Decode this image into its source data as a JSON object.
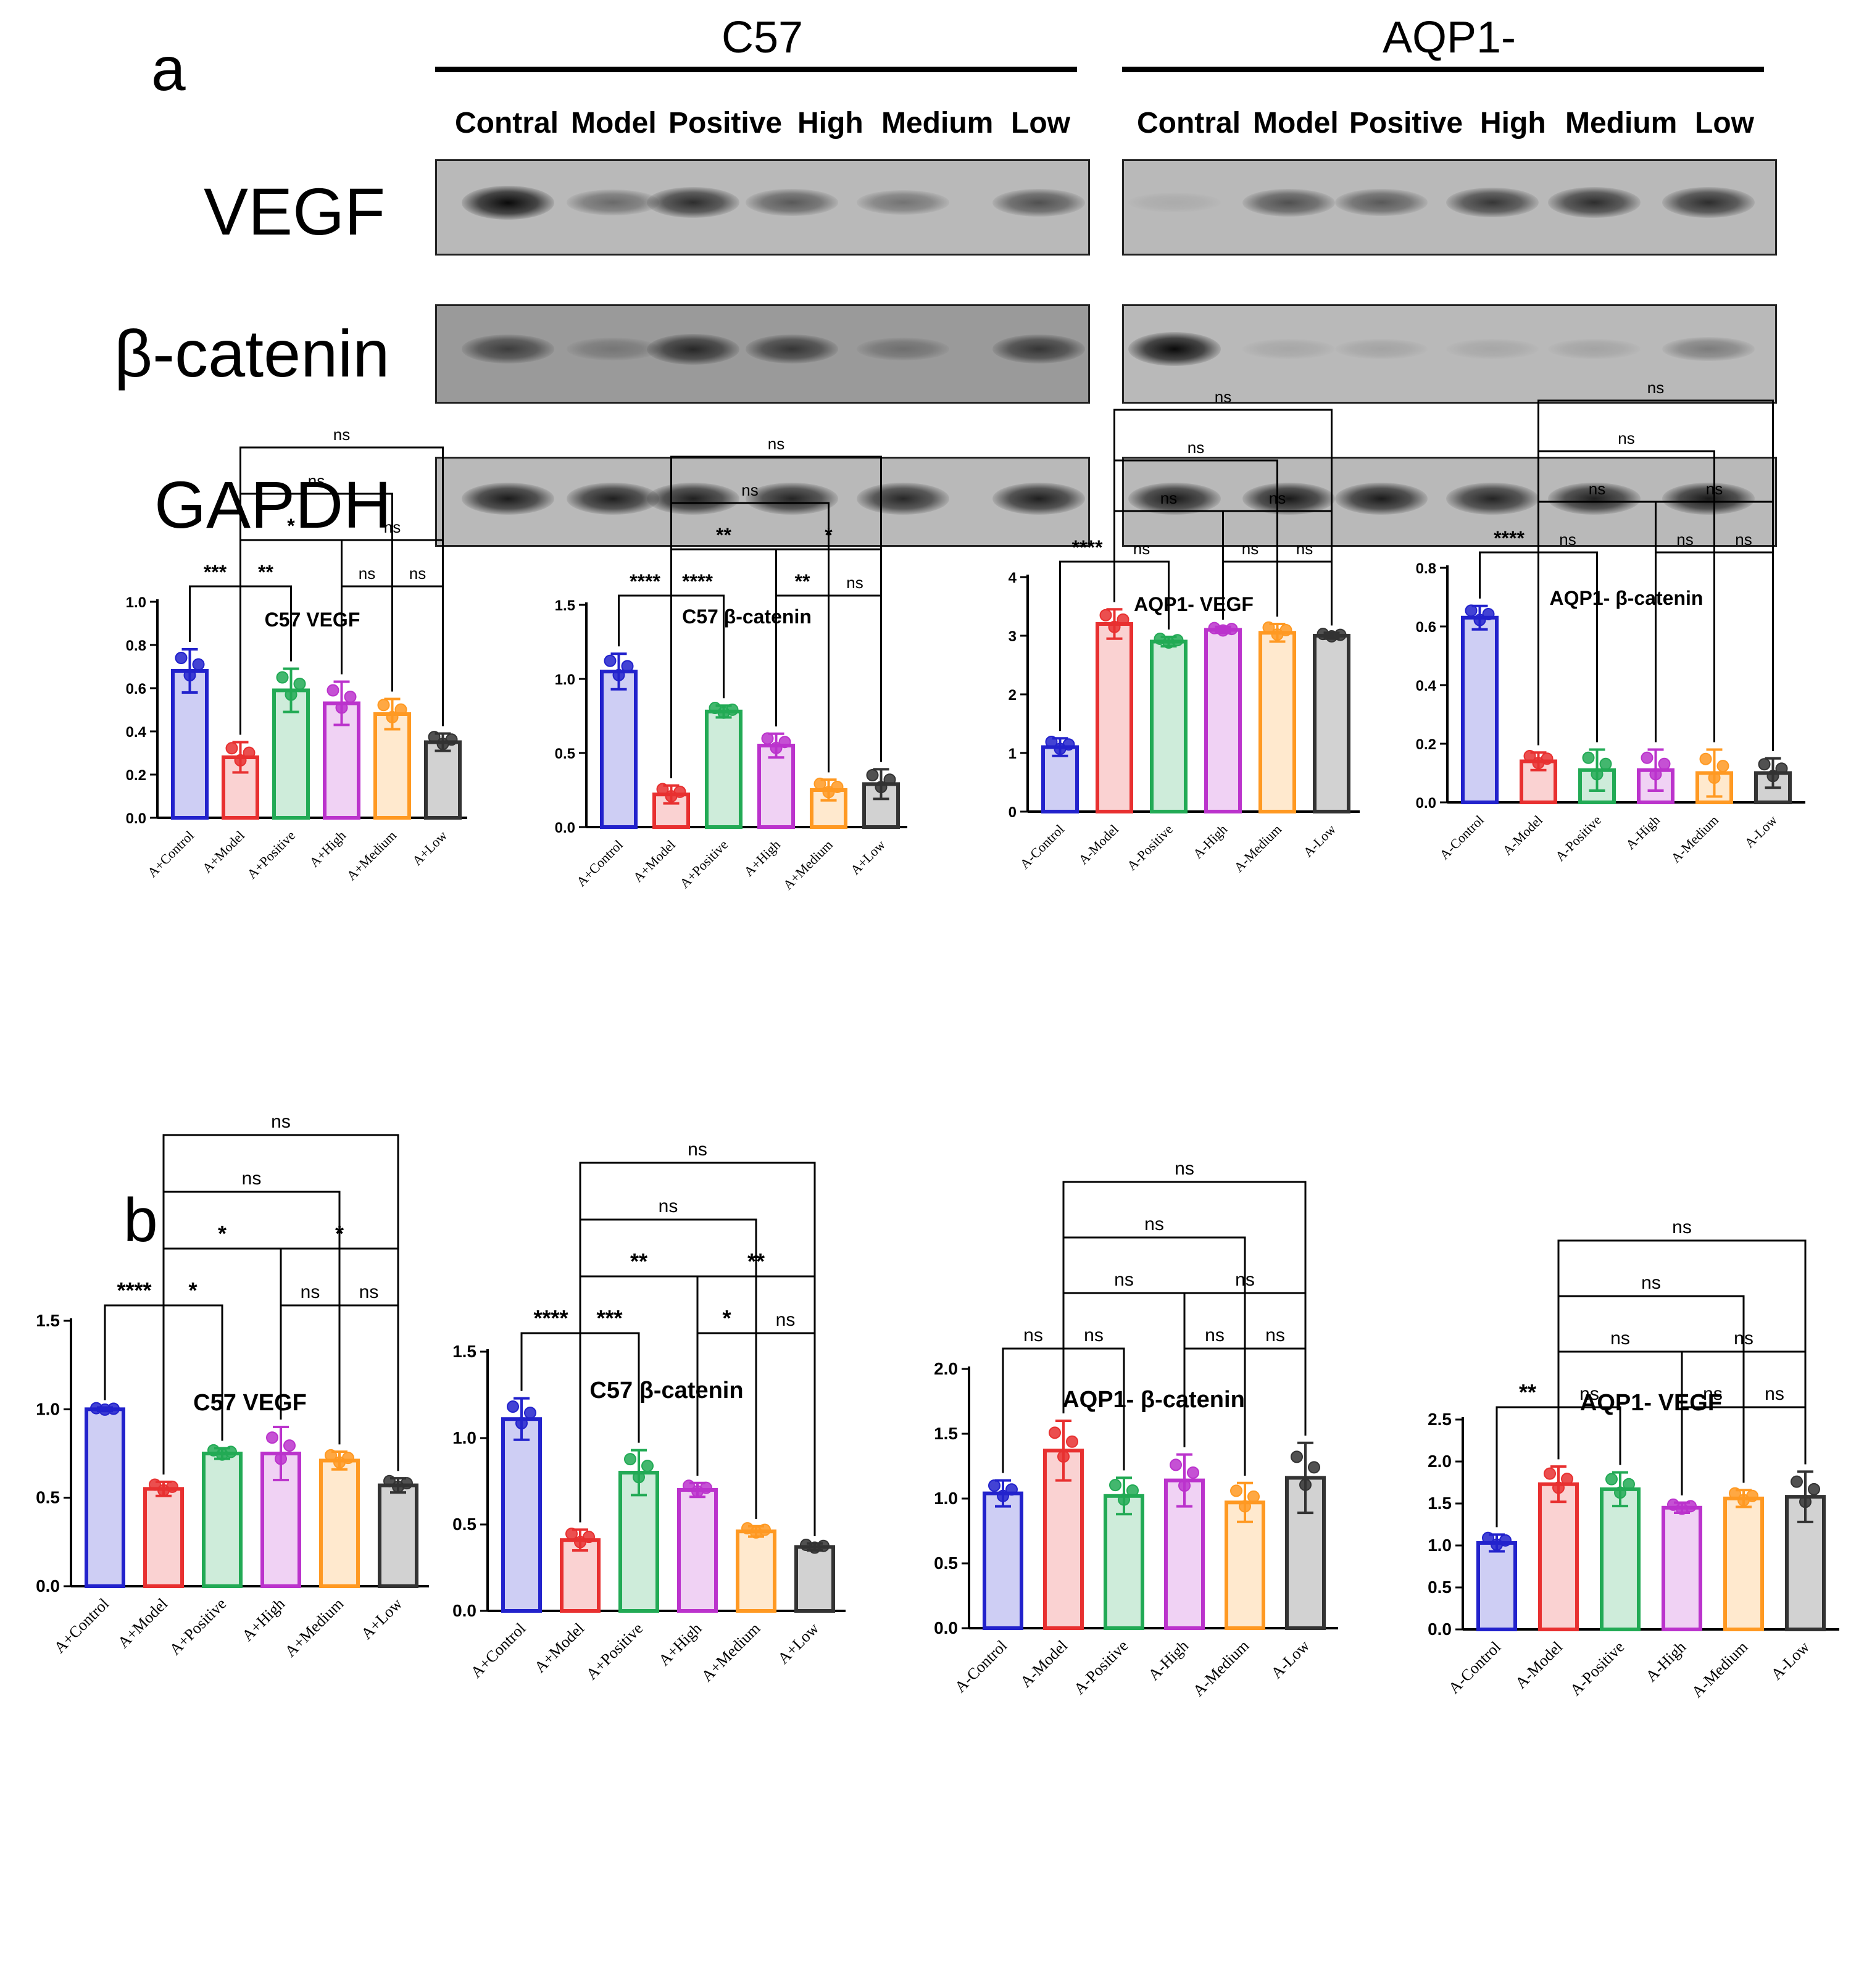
{
  "panels": {
    "a": "a",
    "b": "b"
  },
  "western_blot": {
    "groups": [
      {
        "name": "C57",
        "lanes": [
          "Contral",
          "Model",
          "Positive",
          "High",
          "Medium",
          "Low"
        ]
      },
      {
        "name": "AQP1-",
        "lanes": [
          "Contral",
          "Model",
          "Positive",
          "High",
          "Medium",
          "Low"
        ]
      }
    ],
    "proteins": [
      "VEGF",
      "β-catenin",
      "GAPDH"
    ],
    "band_intensity": {
      "C57": {
        "VEGF": [
          1.0,
          0.45,
          0.8,
          0.55,
          0.4,
          0.6
        ],
        "β-catenin": [
          0.65,
          0.25,
          0.8,
          0.7,
          0.3,
          0.7
        ],
        "GAPDH": [
          0.9,
          0.88,
          0.88,
          0.85,
          0.83,
          0.88
        ]
      },
      "AQP1-": {
        "VEGF": [
          0.08,
          0.6,
          0.55,
          0.75,
          0.8,
          0.8
        ],
        "β-catenin": [
          1.0,
          0.1,
          0.12,
          0.1,
          0.12,
          0.35
        ],
        "GAPDH": [
          0.9,
          0.92,
          0.9,
          0.85,
          0.88,
          0.92
        ]
      }
    }
  },
  "colors": {
    "Control": "#2222cc",
    "Model": "#e83030",
    "Positive": "#22aa55",
    "High": "#bb33cc",
    "Medium": "#ff9922",
    "Low": "#333333"
  },
  "chart_data": [
    {
      "type": "bar",
      "panel": "a",
      "title": "C57 VEGF",
      "categories": [
        "A+Control",
        "A+Model",
        "A+Positive",
        "A+High",
        "A+Medium",
        "A+Low"
      ],
      "values": [
        0.68,
        0.28,
        0.59,
        0.53,
        0.48,
        0.35
      ],
      "errors": [
        0.1,
        0.07,
        0.1,
        0.1,
        0.07,
        0.04
      ],
      "ylim": [
        0,
        1.0
      ],
      "yticks": [
        "0.0",
        "0.2",
        "0.4",
        "0.6",
        "0.8",
        "1.0"
      ],
      "significance": [
        {
          "from": 1,
          "to": 5,
          "label": "ns"
        },
        {
          "from": 1,
          "to": 4,
          "label": "ns"
        },
        {
          "from": 1,
          "to": 3,
          "label": "*"
        },
        {
          "from": 3,
          "to": 5,
          "label": "ns"
        },
        {
          "from": 0,
          "to": 1,
          "label": "***"
        },
        {
          "from": 1,
          "to": 2,
          "label": "**"
        },
        {
          "from": 3,
          "to": 4,
          "label": "ns"
        },
        {
          "from": 4,
          "to": 5,
          "label": "ns"
        }
      ]
    },
    {
      "type": "bar",
      "panel": "a",
      "title": "C57 β-catenin",
      "categories": [
        "A+Control",
        "A+Model",
        "A+Positive",
        "A+High",
        "A+Medium",
        "A+Low"
      ],
      "values": [
        1.05,
        0.22,
        0.78,
        0.55,
        0.25,
        0.29
      ],
      "errors": [
        0.12,
        0.06,
        0.04,
        0.08,
        0.07,
        0.1
      ],
      "ylim": [
        0,
        1.5
      ],
      "yticks": [
        "0.0",
        "0.5",
        "1.0",
        "1.5"
      ],
      "significance": [
        {
          "from": 1,
          "to": 5,
          "label": "ns"
        },
        {
          "from": 1,
          "to": 4,
          "label": "ns"
        },
        {
          "from": 1,
          "to": 2,
          "label": "****"
        },
        {
          "from": 3,
          "to": 5,
          "label": "*"
        },
        {
          "from": 0,
          "to": 1,
          "label": "****"
        },
        {
          "from": 1,
          "to": 3,
          "label": "**"
        },
        {
          "from": 3,
          "to": 4,
          "label": "**"
        },
        {
          "from": 4,
          "to": 5,
          "label": "ns"
        }
      ]
    },
    {
      "type": "bar",
      "panel": "a",
      "title": "AQP1-  VEGF",
      "categories": [
        "A-Control",
        "A-Model",
        "A-Positive",
        "A-High",
        "A-Medium",
        "A-Low"
      ],
      "values": [
        1.1,
        3.2,
        2.9,
        3.1,
        3.05,
        3.0
      ],
      "errors": [
        0.15,
        0.25,
        0.08,
        0.05,
        0.15,
        0.05
      ],
      "ylim": [
        0,
        4
      ],
      "yticks": [
        "0",
        "1",
        "2",
        "3",
        "4"
      ],
      "significance": [
        {
          "from": 1,
          "to": 5,
          "label": "ns"
        },
        {
          "from": 1,
          "to": 4,
          "label": "ns"
        },
        {
          "from": 1,
          "to": 3,
          "label": "ns"
        },
        {
          "from": 3,
          "to": 5,
          "label": "ns"
        },
        {
          "from": 0,
          "to": 1,
          "label": "****"
        },
        {
          "from": 1,
          "to": 2,
          "label": "ns"
        },
        {
          "from": 3,
          "to": 4,
          "label": "ns"
        },
        {
          "from": 4,
          "to": 5,
          "label": "ns"
        }
      ]
    },
    {
      "type": "bar",
      "panel": "a",
      "title": "AQP1- β-catenin",
      "categories": [
        "A-Control",
        "A-Model",
        "A-Positive",
        "A-High",
        "A-Medium",
        "A-Low"
      ],
      "values": [
        0.63,
        0.14,
        0.11,
        0.11,
        0.1,
        0.1
      ],
      "errors": [
        0.04,
        0.03,
        0.07,
        0.07,
        0.08,
        0.05
      ],
      "ylim": [
        0,
        0.8
      ],
      "yticks": [
        "0.0",
        "0.2",
        "0.4",
        "0.6",
        "0.8"
      ],
      "significance": [
        {
          "from": 1,
          "to": 5,
          "label": "ns"
        },
        {
          "from": 1,
          "to": 4,
          "label": "ns"
        },
        {
          "from": 1,
          "to": 3,
          "label": "ns"
        },
        {
          "from": 3,
          "to": 5,
          "label": "ns"
        },
        {
          "from": 0,
          "to": 1,
          "label": "****"
        },
        {
          "from": 1,
          "to": 2,
          "label": "ns"
        },
        {
          "from": 3,
          "to": 4,
          "label": "ns"
        },
        {
          "from": 4,
          "to": 5,
          "label": "ns"
        }
      ]
    },
    {
      "type": "bar",
      "panel": "b",
      "title": "C57 VEGF",
      "categories": [
        "A+Control",
        "A+Model",
        "A+Positive",
        "A+High",
        "A+Medium",
        "A+Low"
      ],
      "values": [
        1.0,
        0.55,
        0.75,
        0.75,
        0.71,
        0.57
      ],
      "errors": [
        0.01,
        0.04,
        0.03,
        0.15,
        0.05,
        0.04
      ],
      "ylim": [
        0,
        1.5
      ],
      "yticks": [
        "0.0",
        "0.5",
        "1.0",
        "1.5"
      ],
      "significance": [
        {
          "from": 1,
          "to": 5,
          "label": "ns"
        },
        {
          "from": 1,
          "to": 4,
          "label": "ns"
        },
        {
          "from": 1,
          "to": 3,
          "label": "*"
        },
        {
          "from": 3,
          "to": 5,
          "label": "*"
        },
        {
          "from": 0,
          "to": 1,
          "label": "****"
        },
        {
          "from": 1,
          "to": 2,
          "label": "*"
        },
        {
          "from": 3,
          "to": 4,
          "label": "ns"
        },
        {
          "from": 4,
          "to": 5,
          "label": "ns"
        }
      ]
    },
    {
      "type": "bar",
      "panel": "b",
      "title": "C57 β-catenin",
      "categories": [
        "A+Control",
        "A+Model",
        "A+Positive",
        "A+High",
        "A+Medium",
        "A+Low"
      ],
      "values": [
        1.11,
        0.41,
        0.8,
        0.7,
        0.46,
        0.37
      ],
      "errors": [
        0.12,
        0.06,
        0.13,
        0.04,
        0.03,
        0.02
      ],
      "ylim": [
        0,
        1.5
      ],
      "yticks": [
        "0.0",
        "0.5",
        "1.0",
        "1.5"
      ],
      "significance": [
        {
          "from": 1,
          "to": 5,
          "label": "ns"
        },
        {
          "from": 1,
          "to": 4,
          "label": "ns"
        },
        {
          "from": 1,
          "to": 2,
          "label": "***"
        },
        {
          "from": 3,
          "to": 5,
          "label": "**"
        },
        {
          "from": 0,
          "to": 1,
          "label": "****"
        },
        {
          "from": 1,
          "to": 3,
          "label": "**"
        },
        {
          "from": 3,
          "to": 4,
          "label": "*"
        },
        {
          "from": 4,
          "to": 5,
          "label": "ns"
        }
      ]
    },
    {
      "type": "bar",
      "panel": "b",
      "title": "AQP1- β-catenin",
      "categories": [
        "A-Control",
        "A-Model",
        "A-Positive",
        "A-High",
        "A-Medium",
        "A-Low"
      ],
      "values": [
        1.04,
        1.37,
        1.02,
        1.14,
        0.97,
        1.16
      ],
      "errors": [
        0.1,
        0.23,
        0.14,
        0.2,
        0.15,
        0.27
      ],
      "ylim": [
        0,
        2.0
      ],
      "yticks": [
        "0.0",
        "0.5",
        "1.0",
        "1.5",
        "2.0"
      ],
      "significance": [
        {
          "from": 1,
          "to": 5,
          "label": "ns"
        },
        {
          "from": 1,
          "to": 4,
          "label": "ns"
        },
        {
          "from": 1,
          "to": 3,
          "label": "ns"
        },
        {
          "from": 3,
          "to": 5,
          "label": "ns"
        },
        {
          "from": 0,
          "to": 1,
          "label": "ns"
        },
        {
          "from": 1,
          "to": 2,
          "label": "ns"
        },
        {
          "from": 3,
          "to": 4,
          "label": "ns"
        },
        {
          "from": 4,
          "to": 5,
          "label": "ns"
        }
      ]
    },
    {
      "type": "bar",
      "panel": "b",
      "title": "AQP1-  VEGF",
      "categories": [
        "A-Control",
        "A-Model",
        "A-Positive",
        "A-High",
        "A-Medium",
        "A-Low"
      ],
      "values": [
        1.03,
        1.73,
        1.67,
        1.45,
        1.56,
        1.58
      ],
      "errors": [
        0.1,
        0.21,
        0.2,
        0.06,
        0.1,
        0.3
      ],
      "ylim": [
        0,
        2.5
      ],
      "yticks": [
        "0.0",
        "0.5",
        "1.0",
        "1.5",
        "2.0",
        "2.5"
      ],
      "significance": [
        {
          "from": 1,
          "to": 5,
          "label": "ns"
        },
        {
          "from": 1,
          "to": 4,
          "label": "ns"
        },
        {
          "from": 1,
          "to": 3,
          "label": "ns"
        },
        {
          "from": 3,
          "to": 5,
          "label": "ns"
        },
        {
          "from": 0,
          "to": 1,
          "label": "**"
        },
        {
          "from": 1,
          "to": 2,
          "label": "ns"
        },
        {
          "from": 3,
          "to": 4,
          "label": "ns"
        },
        {
          "from": 4,
          "to": 5,
          "label": "ns"
        }
      ]
    }
  ]
}
